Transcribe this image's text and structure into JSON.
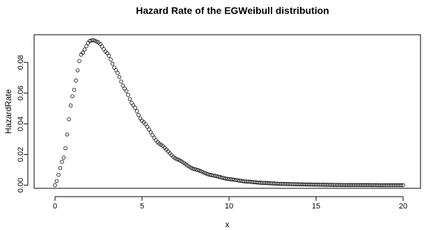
{
  "chart_data": {
    "type": "scatter",
    "title": "Hazard Rate of the EGWeibull distribution",
    "xlabel": "x",
    "ylabel": "HazardRate",
    "xlim": [
      -1.2,
      21.0
    ],
    "ylim": [
      -0.002,
      0.098
    ],
    "x_ticks": [
      0,
      5,
      10,
      15,
      20
    ],
    "x_tick_labels": [
      "0",
      "5",
      "10",
      "15",
      "20"
    ],
    "y_ticks": [
      0.0,
      0.02,
      0.04,
      0.06,
      0.08
    ],
    "y_tick_labels": [
      "0.00",
      "0.02",
      "0.04",
      "0.06",
      "0.08"
    ],
    "grid": false,
    "marker": "open-circle",
    "series": [
      {
        "x_start": 0,
        "x_end": 20,
        "x_step": 0.1,
        "x": [
          0,
          0.5,
          1,
          1.5,
          2,
          2.2,
          2.5,
          3,
          3.5,
          4,
          4.5,
          5,
          6,
          7,
          8,
          9,
          10,
          11,
          12,
          13,
          14,
          15,
          16,
          17,
          18,
          19,
          20
        ],
        "y": [
          0.0,
          0.018,
          0.058,
          0.085,
          0.094,
          0.0945,
          0.093,
          0.086,
          0.075,
          0.063,
          0.052,
          0.042,
          0.027,
          0.017,
          0.0105,
          0.0065,
          0.004,
          0.0024,
          0.0015,
          0.0009,
          0.0006,
          0.0004,
          0.0002,
          0.0001,
          0.0001,
          0.0,
          0.0
        ]
      }
    ]
  }
}
